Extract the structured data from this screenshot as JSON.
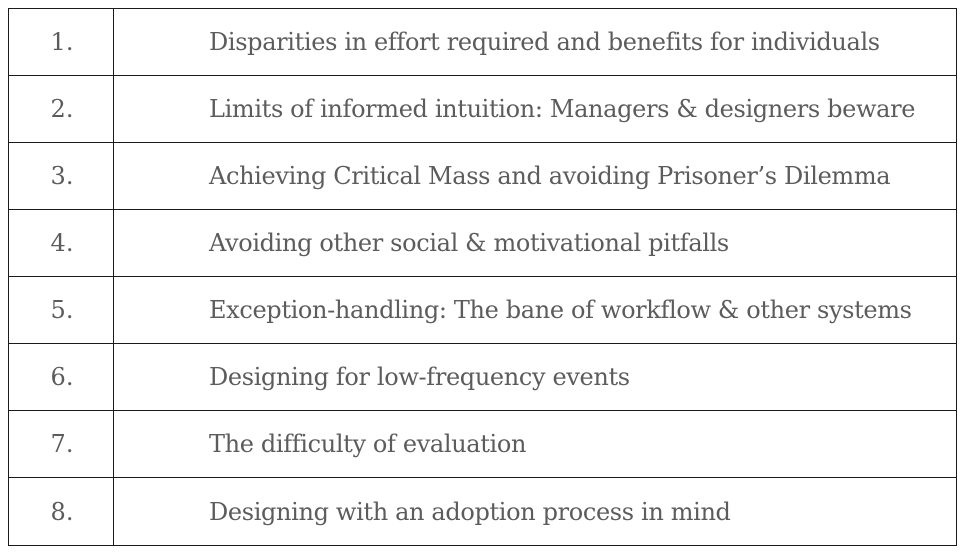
{
  "rows": [
    {
      "number": "1.",
      "text": "Disparities in effort required and benefits for individuals"
    },
    {
      "number": "2.",
      "text": "Limits of informed intuition: Managers & designers beware"
    },
    {
      "number": "3.",
      "text": "Achieving Critical Mass and avoiding Prisoner’s Dilemma"
    },
    {
      "number": "4.",
      "text": "Avoiding other social & motivational pitfalls"
    },
    {
      "number": "5.",
      "text": "Exception-handling: The bane of workflow & other systems"
    },
    {
      "number": "6.",
      "text": "Designing for low-frequency events"
    },
    {
      "number": "7.",
      "text": "The difficulty of evaluation"
    },
    {
      "number": "8.",
      "text": "Designing with an adoption process in mind"
    }
  ]
}
